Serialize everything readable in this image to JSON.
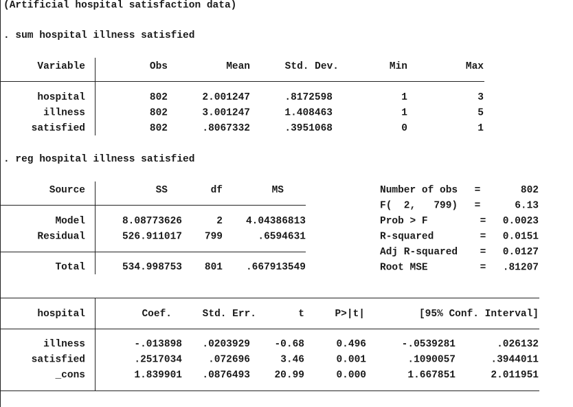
{
  "title": "(Artificial hospital satisfaction data)",
  "commands": [
    ". sum hospital illness satisfied",
    ". reg hospital illness satisfied"
  ],
  "summary": {
    "headers": [
      "Variable",
      "Obs",
      "Mean",
      "Std. Dev.",
      "Min",
      "Max"
    ],
    "rows": [
      [
        "hospital",
        "802",
        "2.001247",
        ".8172598",
        "1",
        "3"
      ],
      [
        "illness",
        "802",
        "3.001247",
        "1.408463",
        "1",
        "5"
      ],
      [
        "satisfied",
        "802",
        ".8067332",
        ".3951068",
        "0",
        "1"
      ]
    ]
  },
  "anova": {
    "headers": [
      "Source",
      "SS",
      "df",
      "MS"
    ],
    "rows": [
      [
        "Model",
        "8.08773626",
        "2",
        "4.04386813"
      ],
      [
        "Residual",
        "526.911017",
        "799",
        ".6594631"
      ]
    ],
    "total": [
      "Total",
      "534.998753",
      "801",
      ".667913549"
    ]
  },
  "stats": [
    {
      "label": "Number of obs",
      "eq": "=",
      "value": "802"
    },
    {
      "label": "F(  2,   799)",
      "eq": "=",
      "value": "6.13"
    },
    {
      "label": "Prob > F",
      "eq": "=",
      "value": "0.0023"
    },
    {
      "label": "R-squared",
      "eq": "=",
      "value": "0.0151"
    },
    {
      "label": "Adj R-squared",
      "eq": "=",
      "value": "0.0127"
    },
    {
      "label": "Root MSE",
      "eq": "=",
      "value": ".81207"
    }
  ],
  "coef": {
    "headers": [
      "hospital",
      "Coef.",
      "Std. Err.",
      "t",
      "P>|t|",
      "[95% Conf. Interval]"
    ],
    "rows": [
      [
        "illness",
        "-.013898",
        ".0203929",
        "-0.68",
        "0.496",
        "-.0539281",
        ".026132"
      ],
      [
        "satisfied",
        ".2517034",
        ".072696",
        "3.46",
        "0.001",
        ".1090057",
        ".3944011"
      ],
      [
        "_cons",
        "1.839901",
        ".0876493",
        "20.99",
        "0.000",
        "1.667851",
        "2.011951"
      ]
    ]
  }
}
